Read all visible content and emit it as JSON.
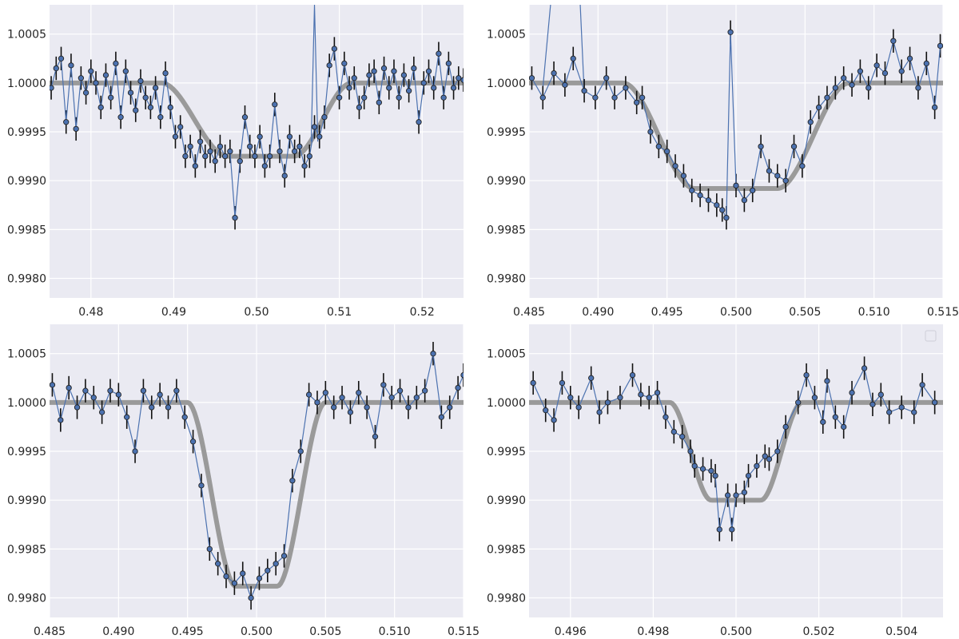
{
  "chart_data": [
    {
      "type": "line",
      "title": "",
      "xlabel": "",
      "ylabel": "",
      "xlim": [
        0.475,
        0.525
      ],
      "ylim": [
        0.9978,
        1.0008
      ],
      "xticks": [
        "0.48",
        "0.49",
        "0.50",
        "0.51",
        "0.52"
      ],
      "yticks": [
        "1.0005",
        "1.0000",
        "0.9995",
        "0.9990",
        "0.9985",
        "0.9980"
      ],
      "grid": true,
      "model": {
        "depth": 0.00075,
        "ingress_start": 0.4885,
        "full_start": 0.4965,
        "full_end": 0.5045,
        "egress_end": 0.5115
      },
      "data": {
        "x": [
          0.4752,
          0.4758,
          0.4764,
          0.477,
          0.4776,
          0.4782,
          0.4788,
          0.4794,
          0.48,
          0.4806,
          0.4812,
          0.4818,
          0.4824,
          0.483,
          0.4836,
          0.4842,
          0.4848,
          0.4854,
          0.486,
          0.4866,
          0.4872,
          0.4878,
          0.4884,
          0.489,
          0.4896,
          0.4902,
          0.4908,
          0.4914,
          0.492,
          0.4926,
          0.4932,
          0.4938,
          0.4944,
          0.495,
          0.4956,
          0.4962,
          0.4968,
          0.4974,
          0.498,
          0.4986,
          0.4992,
          0.4998,
          0.5004,
          0.501,
          0.5016,
          0.5022,
          0.5028,
          0.5034,
          0.504,
          0.5046,
          0.5052,
          0.5058,
          0.5064,
          0.507,
          0.5076,
          0.5082,
          0.5088,
          0.5094,
          0.51,
          0.5106,
          0.5112,
          0.5118,
          0.5124,
          0.513,
          0.5136,
          0.5142,
          0.5148,
          0.5154,
          0.516,
          0.5166,
          0.5172,
          0.5178,
          0.5184,
          0.519,
          0.5196,
          0.5202,
          0.5208,
          0.5214,
          0.522,
          0.5226,
          0.5232,
          0.5238,
          0.5244,
          0.525
        ],
        "y": [
          0.99995,
          1.00015,
          1.00025,
          0.9996,
          1.00018,
          0.99953,
          1.00005,
          0.9999,
          1.00012,
          1.0,
          0.99975,
          1.00008,
          0.99985,
          1.0002,
          0.99965,
          1.00012,
          0.9999,
          0.99972,
          1.00002,
          0.99985,
          0.99975,
          0.99995,
          0.99965,
          1.0001,
          0.99975,
          0.99945,
          0.99955,
          0.99925,
          0.99935,
          0.99915,
          0.9994,
          0.99925,
          0.9993,
          0.9992,
          0.99935,
          0.99925,
          0.9993,
          0.99862,
          0.9992,
          0.99965,
          0.99935,
          0.99925,
          0.99945,
          0.99915,
          0.99925,
          0.99978,
          0.9993,
          0.99905,
          0.99945,
          0.9993,
          0.99935,
          0.99915,
          0.99925,
          0.99955,
          0.99945,
          0.99965,
          1.00018,
          1.00035,
          0.99985,
          1.0002,
          0.99995,
          1.00005,
          0.99975,
          0.99985,
          1.00008,
          1.00012,
          0.9998,
          1.00015,
          0.99995,
          1.00012,
          0.99985,
          1.00008,
          0.99992,
          1.00015,
          0.9996,
          1.0,
          1.00012,
          0.99995,
          1.0003,
          0.99985,
          1.0002,
          0.99995,
          1.00005,
          1.00003
        ],
        "yerr": 0.00012
      },
      "outlier_line": [
        [
          0.5066,
          0.9994
        ],
        [
          0.507,
          1.0008
        ],
        [
          0.5074,
          0.9994
        ]
      ]
    },
    {
      "type": "line",
      "title": "",
      "xlabel": "",
      "ylabel": "",
      "xlim": [
        0.485,
        0.515
      ],
      "ylim": [
        0.9978,
        1.0008
      ],
      "xticks": [
        "0.485",
        "0.490",
        "0.495",
        "0.500",
        "0.505",
        "0.510",
        "0.515"
      ],
      "yticks": [
        "1.0005",
        "1.0000",
        "0.9995",
        "0.9990",
        "0.9985",
        "0.9980"
      ],
      "grid": true,
      "model": {
        "depth": 0.00108,
        "ingress_start": 0.4918,
        "full_start": 0.497,
        "full_end": 0.503,
        "egress_end": 0.5082
      },
      "data": {
        "x": [
          0.4852,
          0.486,
          0.4868,
          0.4876,
          0.4882,
          0.489,
          0.4898,
          0.4906,
          0.4912,
          0.492,
          0.4928,
          0.4932,
          0.4938,
          0.4944,
          0.495,
          0.4956,
          0.4962,
          0.4968,
          0.4974,
          0.498,
          0.4986,
          0.499,
          0.4993,
          0.4996,
          0.5,
          0.5006,
          0.5012,
          0.5018,
          0.5024,
          0.503,
          0.5036,
          0.5042,
          0.5048,
          0.5054,
          0.506,
          0.5066,
          0.5072,
          0.5078,
          0.5084,
          0.509,
          0.5096,
          0.5102,
          0.5108,
          0.5114,
          0.512,
          0.5126,
          0.5132,
          0.5138,
          0.5144,
          0.5148
        ],
        "y": [
          1.00005,
          0.99985,
          1.0001,
          0.99998,
          1.00025,
          0.99992,
          0.99985,
          1.00005,
          0.99985,
          0.99995,
          0.9998,
          0.99985,
          0.9995,
          0.99935,
          0.9993,
          0.99915,
          0.99905,
          0.9989,
          0.99885,
          0.9988,
          0.99875,
          0.9987,
          0.99862,
          1.00052,
          0.99895,
          0.9988,
          0.9989,
          0.99935,
          0.9991,
          0.99905,
          0.999,
          0.99935,
          0.99915,
          0.9996,
          0.99975,
          0.99985,
          0.99995,
          1.00005,
          0.99998,
          1.00012,
          0.99995,
          1.00018,
          1.0001,
          1.00043,
          1.00012,
          1.00025,
          0.99995,
          1.0002,
          0.99975,
          1.00038
        ],
        "yerr": 0.00012
      },
      "outlier_line": [
        [
          0.486,
          0.99995
        ],
        [
          0.488,
          1.003
        ],
        [
          0.489,
          0.9999
        ]
      ]
    },
    {
      "type": "line",
      "title": "",
      "xlabel": "",
      "ylabel": "",
      "xlim": [
        0.485,
        0.515
      ],
      "ylim": [
        0.9978,
        1.0008
      ],
      "xticks": [
        "0.485",
        "0.490",
        "0.495",
        "0.500",
        "0.505",
        "0.510",
        "0.515"
      ],
      "yticks": [
        "1.0005",
        "1.0000",
        "0.9995",
        "0.9990",
        "0.9985",
        "0.9980"
      ],
      "grid": true,
      "model": {
        "depth": 0.00188,
        "ingress_start": 0.495,
        "full_start": 0.4985,
        "full_end": 0.5015,
        "egress_end": 0.505
      },
      "data": {
        "x": [
          0.4852,
          0.4858,
          0.4864,
          0.487,
          0.4876,
          0.4882,
          0.4888,
          0.4894,
          0.49,
          0.4906,
          0.4912,
          0.4918,
          0.4924,
          0.493,
          0.4936,
          0.4942,
          0.4948,
          0.4954,
          0.496,
          0.4966,
          0.4972,
          0.4978,
          0.4984,
          0.499,
          0.4996,
          0.5002,
          0.5008,
          0.5014,
          0.502,
          0.5026,
          0.5032,
          0.5038,
          0.5044,
          0.505,
          0.5056,
          0.5062,
          0.5068,
          0.5074,
          0.508,
          0.5086,
          0.5092,
          0.5098,
          0.5104,
          0.511,
          0.5116,
          0.5122,
          0.5128,
          0.5134,
          0.514,
          0.5146,
          0.515
        ],
        "y": [
          1.00018,
          0.99982,
          1.00015,
          0.99995,
          1.00012,
          1.00005,
          0.9999,
          1.00012,
          1.00008,
          0.99985,
          0.9995,
          1.00012,
          0.99995,
          1.00008,
          0.99995,
          1.00012,
          0.99985,
          0.9996,
          0.99915,
          0.9985,
          0.99835,
          0.99822,
          0.99815,
          0.99825,
          0.998,
          0.9982,
          0.99828,
          0.99835,
          0.99843,
          0.9992,
          0.9995,
          1.00008,
          1.0,
          1.0001,
          0.99995,
          1.00005,
          0.9999,
          1.0001,
          0.99995,
          0.99965,
          1.00018,
          1.00005,
          1.00012,
          0.99995,
          1.00005,
          1.00012,
          1.0005,
          0.99985,
          0.99995,
          1.00015,
          1.00028
        ],
        "yerr": 0.00012
      }
    },
    {
      "type": "line",
      "title": "",
      "xlabel": "",
      "ylabel": "",
      "xlim": [
        0.495,
        0.505
      ],
      "ylim": [
        0.9978,
        1.0008
      ],
      "xticks": [
        "0.496",
        "0.498",
        "0.500",
        "0.502",
        "0.504"
      ],
      "yticks": [
        "1.0005",
        "1.0000",
        "0.9995",
        "0.9990",
        "0.9985",
        "0.9980"
      ],
      "grid": true,
      "legend": "top-right",
      "model": {
        "depth": 0.001,
        "ingress_start": 0.4984,
        "full_start": 0.4994,
        "full_end": 0.5006,
        "egress_end": 0.5016
      },
      "data": {
        "x": [
          0.4951,
          0.4954,
          0.4956,
          0.4958,
          0.496,
          0.4962,
          0.4965,
          0.4967,
          0.4969,
          0.4972,
          0.4975,
          0.4977,
          0.4979,
          0.4981,
          0.4983,
          0.4985,
          0.4987,
          0.4989,
          0.499,
          0.4992,
          0.4994,
          0.4995,
          0.4996,
          0.4998,
          0.4999,
          0.5,
          0.5002,
          0.5003,
          0.5005,
          0.5007,
          0.5008,
          0.501,
          0.5012,
          0.5015,
          0.5017,
          0.5019,
          0.5021,
          0.5022,
          0.5024,
          0.5026,
          0.5028,
          0.5031,
          0.5033,
          0.5035,
          0.5037,
          0.504,
          0.5043,
          0.5045,
          0.5048
        ],
        "y": [
          1.0002,
          0.99992,
          0.99982,
          1.0002,
          1.00005,
          0.99995,
          1.00025,
          0.9999,
          1.0,
          1.00005,
          1.00028,
          1.00008,
          1.00005,
          1.0001,
          0.99985,
          0.9997,
          0.99965,
          0.9995,
          0.99935,
          0.99932,
          0.9993,
          0.99925,
          0.9987,
          0.99905,
          0.9987,
          0.99905,
          0.99908,
          0.99925,
          0.99935,
          0.99945,
          0.99942,
          0.9995,
          0.99975,
          1.0,
          1.00028,
          1.00005,
          0.9998,
          1.00022,
          0.99985,
          0.99975,
          1.0001,
          1.00035,
          0.99998,
          1.00008,
          0.9999,
          0.99995,
          0.9999,
          1.00018,
          1.0
        ],
        "yerr": 0.00012
      }
    }
  ]
}
